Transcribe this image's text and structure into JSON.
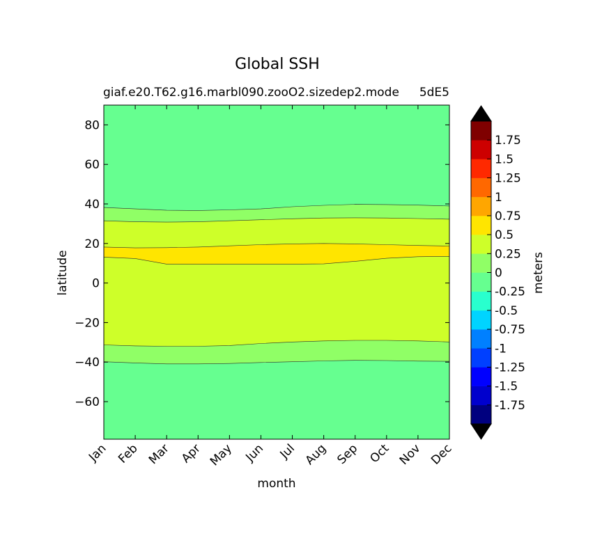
{
  "chart_data": {
    "type": "contour",
    "title": "Global SSH",
    "subtitle": "giaf.e20.T62.g16.marbl090.zooO2.sizedep2.mode",
    "subtitle_right": "5dE5",
    "xlabel": "month",
    "ylabel": "latitude",
    "x_ticks": [
      "Jan",
      "Feb",
      "Mar",
      "Apr",
      "May",
      "Jun",
      "Jul",
      "Aug",
      "Sep",
      "Oct",
      "Nov",
      "Dec"
    ],
    "y_ticks": [
      80,
      60,
      40,
      20,
      0,
      -20,
      -40,
      -60
    ],
    "ylim": [
      -79,
      90
    ],
    "colorbar": {
      "label": "meters",
      "levels": [
        -2,
        -1.75,
        -1.5,
        -1.25,
        -1,
        -0.75,
        -0.5,
        -0.25,
        0,
        0.25,
        0.5,
        0.75,
        1,
        1.25,
        1.5,
        1.75,
        2
      ],
      "tick_labels": [
        "-1.75",
        "-1.5",
        "-1.25",
        "-1",
        "-0.75",
        "-0.5",
        "-0.25",
        "0",
        "0.25",
        "0.5",
        "0.75",
        "1",
        "1.25",
        "1.5",
        "1.75"
      ],
      "tick_values": [
        -1.75,
        -1.5,
        -1.25,
        -1,
        -0.75,
        -0.5,
        -0.25,
        0,
        0.25,
        0.5,
        0.75,
        1,
        1.25,
        1.5,
        1.75
      ],
      "colors": [
        "#00007f",
        "#0000cd",
        "#0000ff",
        "#0040ff",
        "#0080ff",
        "#00d4ff",
        "#29ffce",
        "#66ff90",
        "#90ff66",
        "#ceff29",
        "#ffe500",
        "#ffa600",
        "#ff6800",
        "#ff2900",
        "#cd0000",
        "#7f0000"
      ],
      "extend_colors": {
        "under": "#000000",
        "over": "#000000"
      }
    },
    "contour_lines": [
      {
        "level": 0.0,
        "lat": [
          38.2,
          37.5,
          36.8,
          36.7,
          37.0,
          37.5,
          38.6,
          39.3,
          39.8,
          39.7,
          39.4,
          39.0
        ]
      },
      {
        "level": 0.25,
        "lat": [
          31.5,
          31.0,
          30.8,
          31.0,
          31.5,
          32.0,
          32.5,
          32.9,
          33.0,
          32.9,
          32.6,
          32.3
        ]
      },
      {
        "level": 0.5,
        "lat": [
          18.2,
          17.8,
          17.9,
          18.2,
          18.8,
          19.4,
          19.8,
          20.0,
          19.8,
          19.4,
          19.0,
          18.7
        ]
      },
      {
        "level": 0.5,
        "lat": [
          13.1,
          12.4,
          9.6,
          9.5,
          9.6,
          9.6,
          9.6,
          9.7,
          11.0,
          12.5,
          13.3,
          13.5
        ]
      },
      {
        "level": 0.25,
        "lat": [
          -31.3,
          -31.8,
          -32.0,
          -32.0,
          -31.6,
          -30.6,
          -29.8,
          -29.3,
          -29.0,
          -29.0,
          -29.3,
          -29.8
        ]
      },
      {
        "level": 0.0,
        "lat": [
          -39.8,
          -40.4,
          -40.9,
          -40.9,
          -40.7,
          -40.2,
          -39.8,
          -39.4,
          -39.1,
          -39.2,
          -39.5,
          -39.6
        ]
      }
    ]
  }
}
